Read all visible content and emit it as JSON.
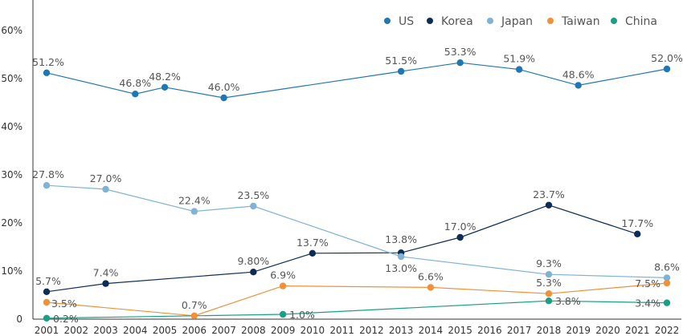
{
  "chart_data": {
    "type": "line",
    "title": "",
    "xlabel": "",
    "ylabel": "",
    "ylim": [
      0,
      65
    ],
    "y_ticks": [
      "0",
      "10%",
      "20%",
      "30%",
      "40%",
      "50%",
      "60%"
    ],
    "y_tick_values": [
      0,
      10,
      20,
      30,
      40,
      50,
      60
    ],
    "x": [
      "2001",
      "2002",
      "2003",
      "2004",
      "2005",
      "2006",
      "2007",
      "2008",
      "2009",
      "2010",
      "2011",
      "2012",
      "2013",
      "2014",
      "2015",
      "2016",
      "2017",
      "2018",
      "2019",
      "2020",
      "2021",
      "2022"
    ],
    "grid": false,
    "legend_position": "top-right",
    "series": [
      {
        "name": "US",
        "color": "#1f77b4",
        "points": [
          {
            "x": "2001",
            "y": 51.2,
            "label": "51.2%"
          },
          {
            "x": "2004",
            "y": 46.8,
            "label": "46.8%"
          },
          {
            "x": "2005",
            "y": 48.2,
            "label": "48.2%"
          },
          {
            "x": "2007",
            "y": 46.0,
            "label": "46.0%"
          },
          {
            "x": "2013",
            "y": 51.5,
            "label": "51.5%"
          },
          {
            "x": "2015",
            "y": 53.3,
            "label": "53.3%"
          },
          {
            "x": "2017",
            "y": 51.9,
            "label": "51.9%"
          },
          {
            "x": "2019",
            "y": 48.6,
            "label": "48.6%"
          },
          {
            "x": "2022",
            "y": 52.0,
            "label": "52.0%"
          }
        ]
      },
      {
        "name": "Korea",
        "color": "#0d2d55",
        "points": [
          {
            "x": "2001",
            "y": 5.7,
            "label": "5.7%"
          },
          {
            "x": "2003",
            "y": 7.4,
            "label": "7.4%"
          },
          {
            "x": "2008",
            "y": 9.8,
            "label": "9.80%"
          },
          {
            "x": "2010",
            "y": 13.7,
            "label": "13.7%"
          },
          {
            "x": "2013",
            "y": 13.8,
            "label": "13.8%"
          },
          {
            "x": "2015",
            "y": 17.0,
            "label": "17.0%"
          },
          {
            "x": "2018",
            "y": 23.7,
            "label": "23.7%"
          },
          {
            "x": "2021",
            "y": 17.7,
            "label": "17.7%"
          }
        ]
      },
      {
        "name": "Japan",
        "color": "#7fb3d5",
        "points": [
          {
            "x": "2001",
            "y": 27.8,
            "label": "27.8%"
          },
          {
            "x": "2003",
            "y": 27.0,
            "label": "27.0%"
          },
          {
            "x": "2006",
            "y": 22.4,
            "label": "22.4%"
          },
          {
            "x": "2008",
            "y": 23.5,
            "label": "23.5%"
          },
          {
            "x": "2013",
            "y": 13.0,
            "label": "13.0%"
          },
          {
            "x": "2018",
            "y": 9.3,
            "label": "9.3%"
          },
          {
            "x": "2022",
            "y": 8.6,
            "label": "8.6%"
          }
        ]
      },
      {
        "name": "Taiwan",
        "color": "#f0913a",
        "points": [
          {
            "x": "2001",
            "y": 3.5,
            "label": "3.5%"
          },
          {
            "x": "2006",
            "y": 0.7,
            "label": "0.7%"
          },
          {
            "x": "2009",
            "y": 6.9,
            "label": "6.9%"
          },
          {
            "x": "2014",
            "y": 6.6,
            "label": "6.6%"
          },
          {
            "x": "2018",
            "y": 5.3,
            "label": "5.3%"
          },
          {
            "x": "2022",
            "y": 7.5,
            "label": "7.5%"
          }
        ]
      },
      {
        "name": "China",
        "color": "#1a9e86",
        "points": [
          {
            "x": "2001",
            "y": 0.2,
            "label": "0.2%"
          },
          {
            "x": "2009",
            "y": 1.0,
            "label": "1.0%"
          },
          {
            "x": "2018",
            "y": 3.8,
            "label": "3.8%"
          },
          {
            "x": "2022",
            "y": 3.4,
            "label": "3.4%"
          }
        ]
      }
    ]
  }
}
